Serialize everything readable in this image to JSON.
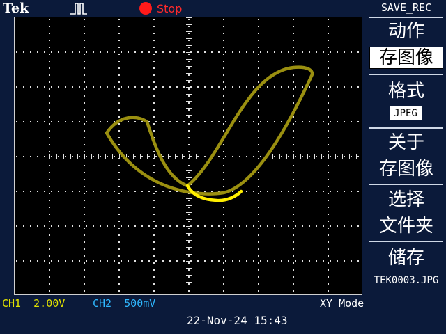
{
  "header": {
    "brand": "Tek",
    "trigger_icon": "rising-pulse-icon",
    "run_state": "Stop",
    "run_state_color": "#ff1a1a"
  },
  "menu": {
    "title": "SAVE_REC",
    "action_label": "动作",
    "action_value": "存图像",
    "format_label": "格式",
    "format_value": "JPEG",
    "about_line1": "关于",
    "about_line2": "存图像",
    "select_line1": "选择",
    "select_line2": "文件夹",
    "save_label": "储存",
    "save_filename": "TEK0003.JPG"
  },
  "status": {
    "ch1": "CH1  2.00V",
    "ch2": "CH2  500mV",
    "mode": "XY Mode",
    "datetime": "22-Nov-24 15:43"
  },
  "colors": {
    "trace_persist": "#9a8f10",
    "trace_current": "#ffee00",
    "ch1": "#e0e000",
    "ch2": "#2fb8ff",
    "background": "#0b1a3a",
    "graticule": "#e0e0e0"
  }
}
